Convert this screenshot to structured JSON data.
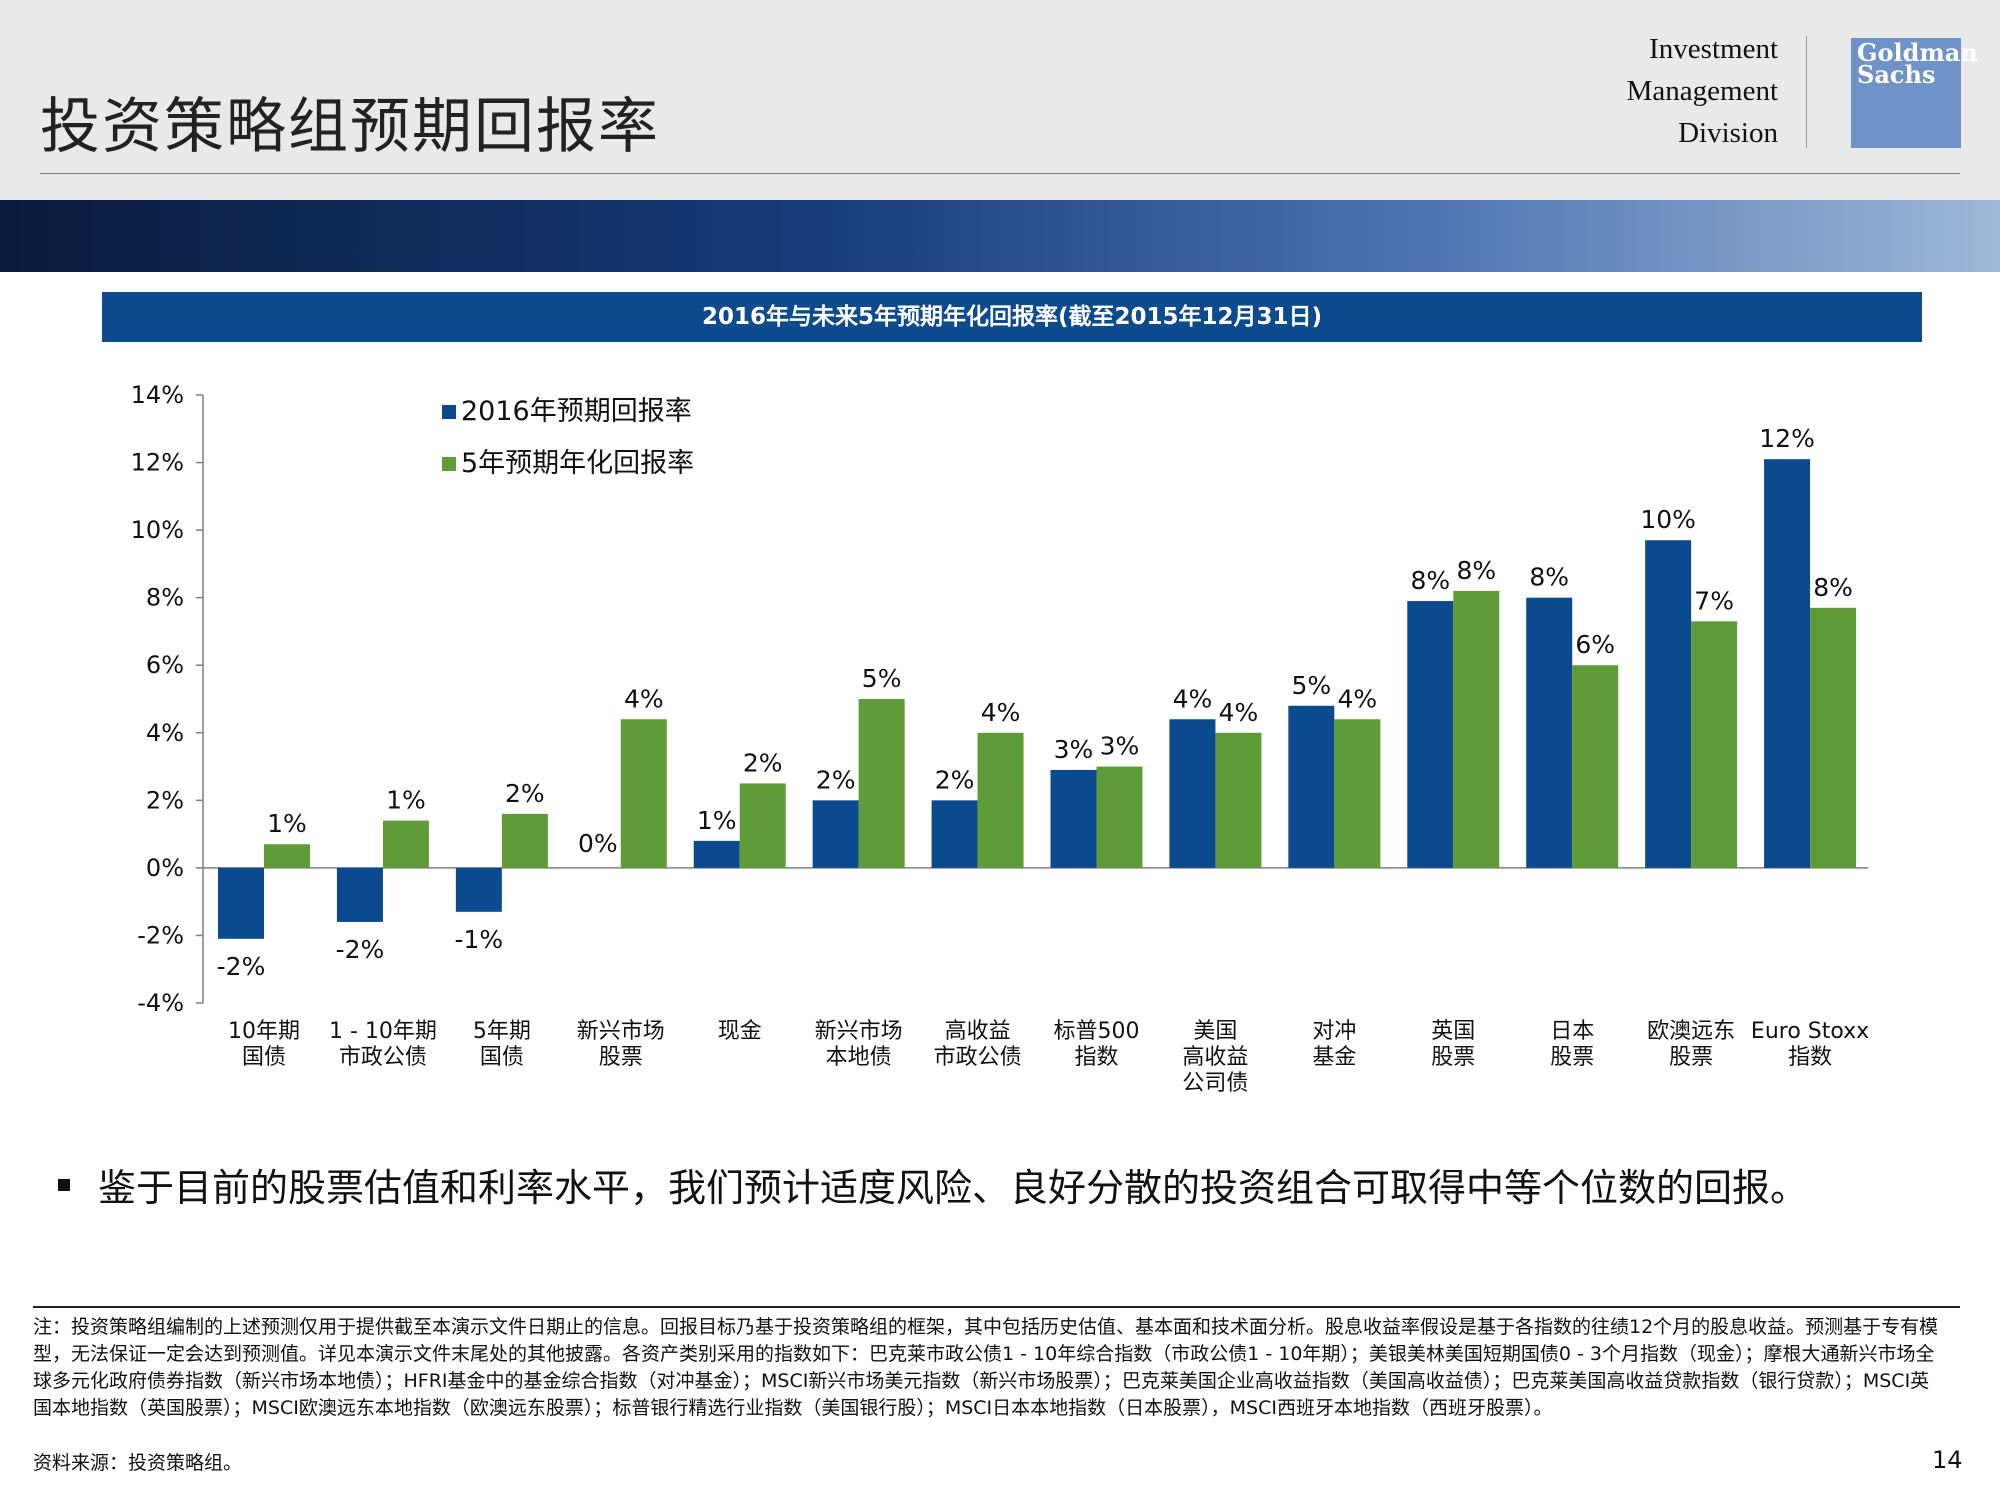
{
  "header": {
    "title": "投资策略组预期回报率",
    "division_lines": [
      "Investment",
      "Management",
      "Division"
    ],
    "logo_lines": [
      "Goldman",
      "Sachs"
    ],
    "logo_color": "#6f93c8"
  },
  "chart_title": "2016年与未来5年预期年化回报率(截至2015年12月31日)",
  "chart_data": {
    "type": "bar",
    "title": "2016年与未来5年预期年化回报率(截至2015年12月31日)",
    "categories": [
      [
        "10年期",
        "国债"
      ],
      [
        "1 - 10年期",
        "市政公债"
      ],
      [
        "5年期",
        "国债"
      ],
      [
        "新兴市场",
        "股票"
      ],
      [
        "现金"
      ],
      [
        "新兴市场",
        "本地债"
      ],
      [
        "高收益",
        "市政公债"
      ],
      [
        "标普500",
        "指数"
      ],
      [
        "美国",
        "高收益",
        "公司债"
      ],
      [
        "对冲",
        "基金"
      ],
      [
        "英国",
        "股票"
      ],
      [
        "日本",
        "股票"
      ],
      [
        "欧澳远东",
        "股票"
      ],
      [
        "Euro Stoxx",
        "指数"
      ]
    ],
    "series": [
      {
        "name": "2016年预期回报率",
        "color": "#0b4a8f",
        "values": [
          -2.1,
          -1.6,
          -1.3,
          0.0,
          0.8,
          2.0,
          2.0,
          2.9,
          4.4,
          4.8,
          7.9,
          8.0,
          9.7,
          12.1
        ],
        "labels": [
          "-2%",
          "-2%",
          "-1%",
          "0%",
          "1%",
          "2%",
          "2%",
          "3%",
          "4%",
          "5%",
          "8%",
          "8%",
          "10%",
          "12%"
        ]
      },
      {
        "name": "5年预期年化回报率",
        "color": "#5f9b37",
        "values": [
          0.7,
          1.4,
          1.6,
          4.4,
          2.5,
          5.0,
          4.0,
          3.0,
          4.0,
          4.4,
          8.2,
          6.0,
          7.3,
          7.7
        ],
        "labels": [
          "1%",
          "1%",
          "2%",
          "4%",
          "2%",
          "5%",
          "4%",
          "3%",
          "4%",
          "4%",
          "8%",
          "6%",
          "7%",
          "8%"
        ]
      }
    ],
    "ylim": [
      -4,
      14
    ],
    "yticks": [
      -4,
      -2,
      0,
      2,
      4,
      6,
      8,
      10,
      12,
      14
    ],
    "ytick_labels": [
      "-4%",
      "-2%",
      "0%",
      "2%",
      "4%",
      "6%",
      "8%",
      "10%",
      "12%",
      "14%"
    ],
    "xlabel": "",
    "ylabel": "",
    "legend_position": "top-left"
  },
  "bullet_text": "鉴于目前的股票估值和利率水平，我们预计适度风险、良好分散的投资组合可取得中等个位数的回报。",
  "notes_text": "注：投资策略组编制的上述预测仅用于提供截至本演示文件日期止的信息。回报目标乃基于投资策略组的框架，其中包括历史估值、基本面和技术面分析。股息收益率假设是基于各指数的往绩12个月的股息收益。预测基于专有模型，无法保证一定会达到预测值。详见本演示文件末尾处的其他披露。各资产类别采用的指数如下：巴克莱市政公债1 - 10年综合指数（市政公债1 - 10年期）；美银美林美国短期国债0 - 3个月指数（现金）；摩根大通新兴市场全球多元化政府债券指数（新兴市场本地债）；HFRI基金中的基金综合指数（对冲基金）；MSCI新兴市场美元指数（新兴市场股票）；巴克莱美国企业高收益指数（美国高收益债）；巴克莱美国高收益贷款指数（银行贷款）；MSCI英国本地指数（英国股票）；MSCI欧澳远东本地指数（欧澳远东股票）；标普银行精选行业指数（美国银行股）；MSCI日本本地指数（日本股票），MSCI西班牙本地指数（西班牙股票）。",
  "source_text": "资料来源：投资策略组。",
  "page_number": "14"
}
